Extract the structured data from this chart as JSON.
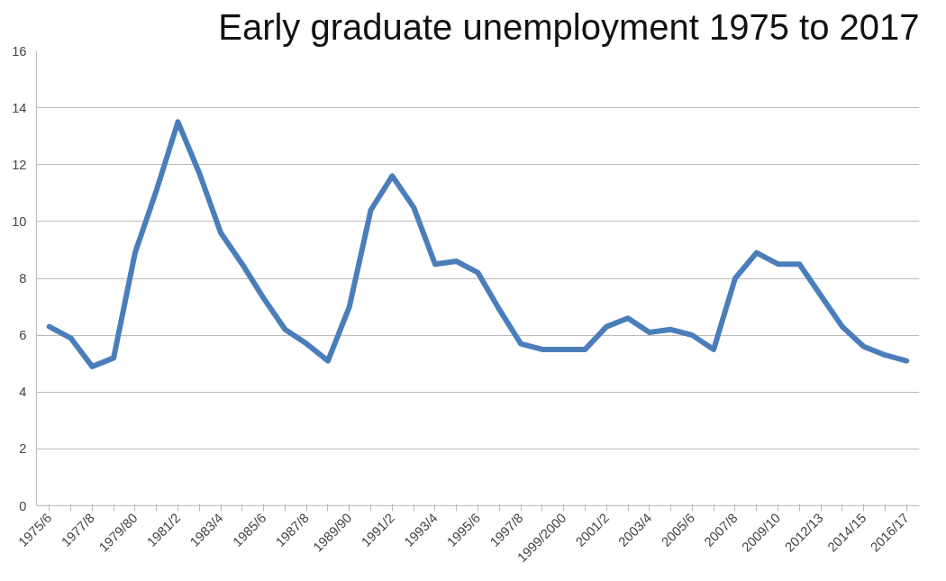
{
  "chart_data": {
    "type": "line",
    "title": "Early graduate unemployment 1975 to 2017",
    "categories": [
      "1975/6",
      null,
      "1977/8",
      null,
      "1979/80",
      null,
      "1981/2",
      null,
      "1983/4",
      null,
      "1985/6",
      null,
      "1987/8",
      null,
      "1989/90",
      null,
      "1991/2",
      null,
      "1993/4",
      null,
      "1995/6",
      null,
      "1997/8",
      null,
      "1999/2000",
      null,
      "2001/2",
      null,
      "2003/4",
      null,
      "2005/6",
      null,
      "2007/8",
      null,
      "2009/10",
      null,
      "2012/13",
      null,
      "2014/15",
      null,
      "2016/17"
    ],
    "series": [
      {
        "color": "#4a7ebb",
        "values": [
          6.3,
          5.9,
          4.9,
          5.2,
          8.9,
          11.1,
          13.5,
          11.7,
          9.6,
          8.5,
          7.3,
          6.2,
          5.7,
          5.1,
          7.0,
          10.4,
          11.6,
          10.5,
          8.5,
          8.6,
          8.2,
          6.9,
          5.7,
          5.5,
          5.5,
          5.5,
          6.3,
          6.6,
          6.1,
          6.2,
          6.0,
          5.5,
          8.0,
          8.9,
          8.5,
          8.5,
          7.4,
          6.3,
          5.6,
          5.3,
          5.1
        ]
      }
    ],
    "ylim": [
      0,
      16
    ],
    "yticks": [
      0,
      2,
      4,
      6,
      8,
      10,
      12,
      14,
      16
    ],
    "grid": "y",
    "marker": "none",
    "line_style": "solid"
  }
}
